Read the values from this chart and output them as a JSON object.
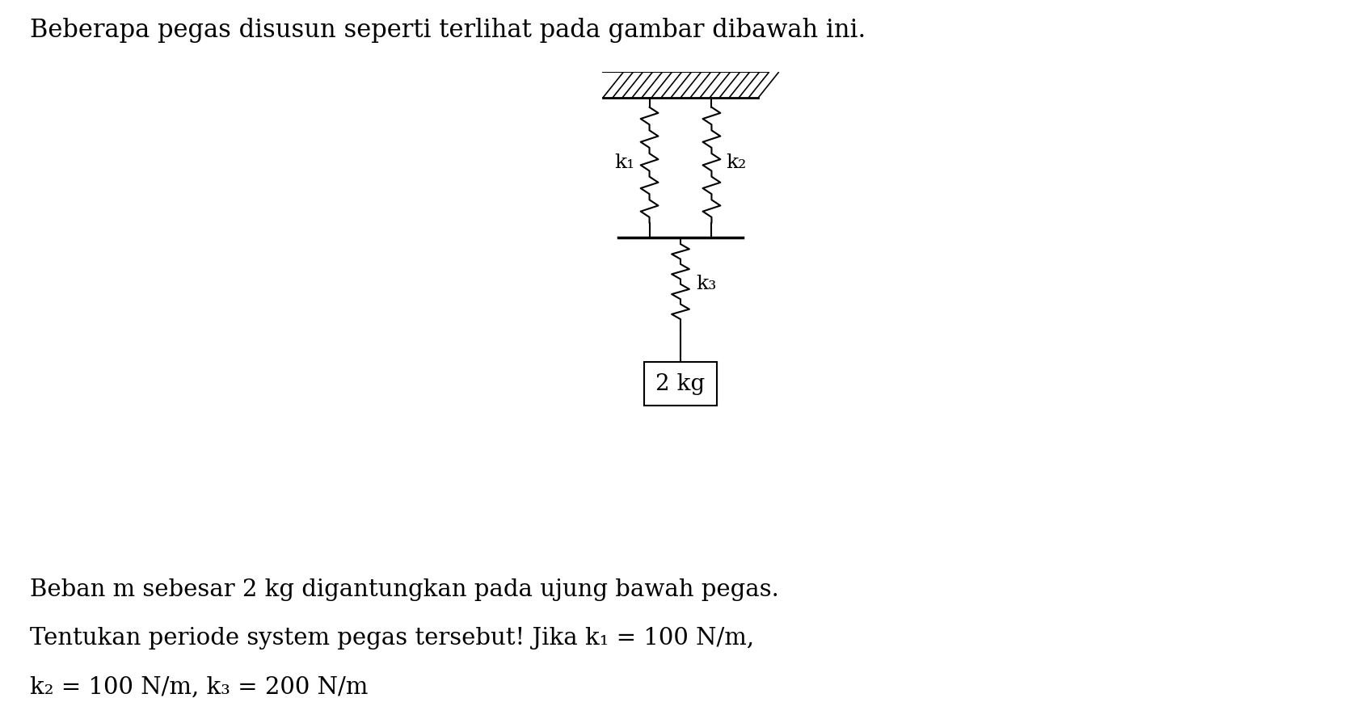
{
  "title_text": "Beberapa pegas disusun seperti terlihat pada gambar dibawah ini.",
  "bottom_text_line1": "Beban m sebesar 2 kg digantungkan pada ujung bawah pegas.",
  "bottom_text_line2": "Tentukan periode system pegas tersebut! Jika k₁ = 100 N/m,",
  "bottom_text_line3": "k₂ = 100 N/m, k₃ = 200 N/m",
  "mass_label": "2 kg",
  "k1_label": "k₁",
  "k2_label": "k₂",
  "k3_label": "k₃",
  "bg_color": "#ffffff",
  "line_color": "#000000",
  "text_color": "#000000",
  "title_fontsize": 22,
  "body_fontsize": 21,
  "label_fontsize": 18,
  "fig_width": 16.84,
  "fig_height": 8.9,
  "dpi": 100
}
